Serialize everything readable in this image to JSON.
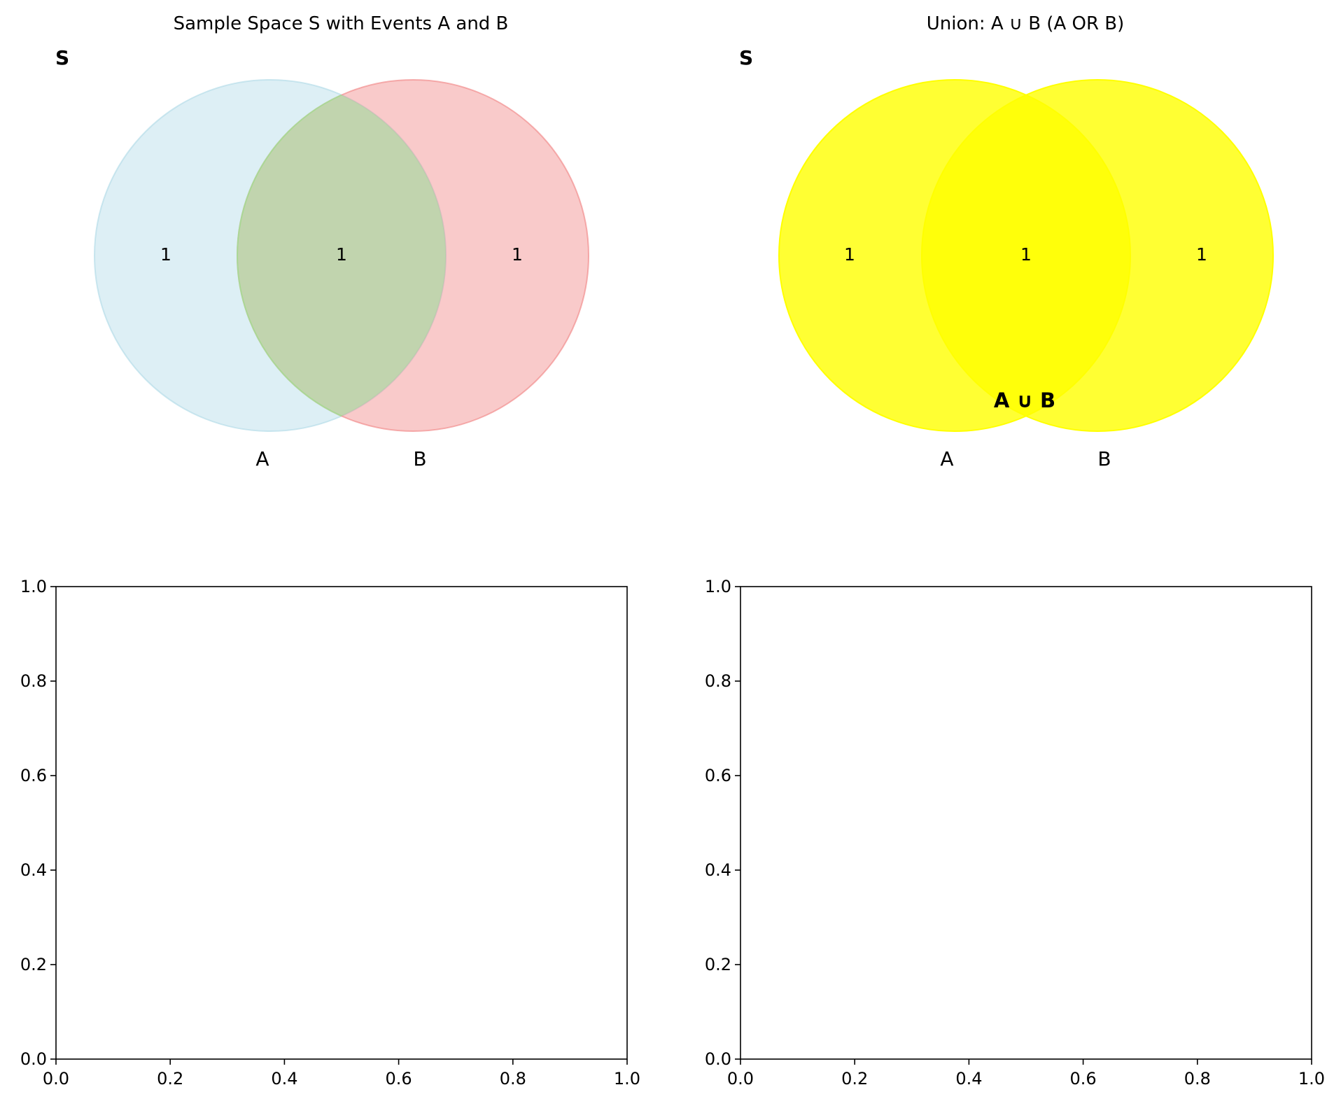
{
  "panels": {
    "sample_space": {
      "title": "Sample Space S with Events A and B",
      "space_label": "S",
      "set_a_label": "A",
      "set_b_label": "B",
      "region_a_only": "1",
      "region_intersection": "1",
      "region_b_only": "1",
      "colors": {
        "a_fill": "#add8e6",
        "b_fill": "#f08080",
        "intersection_fill": "#90ee90"
      }
    },
    "union": {
      "title": "Union: A ∪ B (A OR B)",
      "space_label": "S",
      "set_a_label": "A",
      "set_b_label": "B",
      "region_a_only": "1",
      "region_intersection": "1",
      "region_b_only": "1",
      "highlight_label": "A ∪ B",
      "colors": {
        "union_fill": "#ffff00"
      }
    },
    "empty_left": {
      "x_ticks": [
        "0.0",
        "0.2",
        "0.4",
        "0.6",
        "0.8",
        "1.0"
      ],
      "y_ticks": [
        "0.0",
        "0.2",
        "0.4",
        "0.6",
        "0.8",
        "1.0"
      ]
    },
    "empty_right": {
      "x_ticks": [
        "0.0",
        "0.2",
        "0.4",
        "0.6",
        "0.8",
        "1.0"
      ],
      "y_ticks": [
        "0.0",
        "0.2",
        "0.4",
        "0.6",
        "0.8",
        "1.0"
      ]
    }
  }
}
